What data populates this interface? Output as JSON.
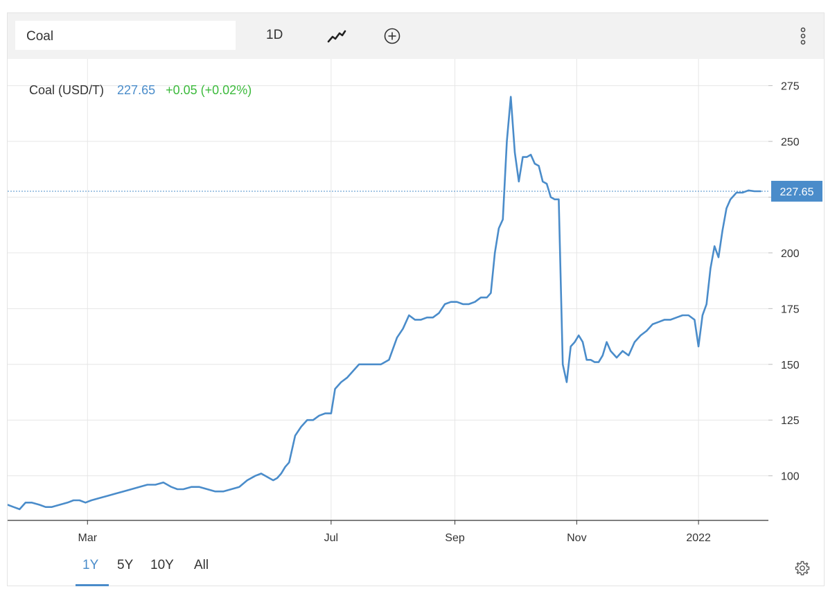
{
  "toolbar": {
    "symbol": "Coal",
    "period": "1D",
    "icons": {
      "chart_type": "line-chart-icon",
      "add": "plus-circle-icon",
      "more": "vertical-dots-icon",
      "settings": "gear-icon"
    }
  },
  "legend": {
    "name": "Coal (USD/T)",
    "price": "227.65",
    "change": "+0.05 (+0.02%)"
  },
  "ranges": [
    {
      "label": "1Y",
      "active": true
    },
    {
      "label": "5Y",
      "active": false
    },
    {
      "label": "10Y",
      "active": false
    },
    {
      "label": "All",
      "active": false
    }
  ],
  "colors": {
    "line": "#4a8cca",
    "up": "#3cba3c",
    "grid": "#e6e6e6",
    "price_tag": "#4a8cca"
  },
  "chart_data": {
    "type": "line",
    "title": "",
    "xlabel": "",
    "ylabel": "",
    "ylim": [
      80,
      287
    ],
    "y_axis_side": "right",
    "y_ticks": [
      100,
      125,
      150,
      175,
      200,
      225,
      250,
      275
    ],
    "y_tick_labels": [
      "100",
      "125",
      "150",
      "175",
      "200",
      "",
      "250",
      "275"
    ],
    "x_ticks": [
      {
        "date": "2021-03-01",
        "label": "Mar"
      },
      {
        "date": "2021-07-01",
        "label": "Jul"
      },
      {
        "date": "2021-09-01",
        "label": "Sep"
      },
      {
        "date": "2021-11-01",
        "label": "Nov"
      },
      {
        "date": "2022-01-01",
        "label": "2022"
      }
    ],
    "x_range": [
      "2021-01-20",
      "2022-02-05"
    ],
    "last_value": 227.65,
    "last_value_label": "227.65",
    "grid": true,
    "series": [
      {
        "name": "Coal (USD/T)",
        "x": [
          "2021-01-20",
          "2021-01-23",
          "2021-01-26",
          "2021-01-29",
          "2021-02-01",
          "2021-02-05",
          "2021-02-08",
          "2021-02-11",
          "2021-02-15",
          "2021-02-19",
          "2021-02-22",
          "2021-02-25",
          "2021-02-28",
          "2021-03-03",
          "2021-03-07",
          "2021-03-11",
          "2021-03-15",
          "2021-03-19",
          "2021-03-23",
          "2021-03-27",
          "2021-03-31",
          "2021-04-04",
          "2021-04-08",
          "2021-04-12",
          "2021-04-15",
          "2021-04-18",
          "2021-04-22",
          "2021-04-26",
          "2021-04-30",
          "2021-05-04",
          "2021-05-08",
          "2021-05-12",
          "2021-05-16",
          "2021-05-20",
          "2021-05-24",
          "2021-05-27",
          "2021-05-31",
          "2021-06-02",
          "2021-06-04",
          "2021-06-06",
          "2021-06-08",
          "2021-06-10",
          "2021-06-13",
          "2021-06-16",
          "2021-06-19",
          "2021-06-22",
          "2021-06-25",
          "2021-06-28",
          "2021-07-01",
          "2021-07-03",
          "2021-07-06",
          "2021-07-09",
          "2021-07-12",
          "2021-07-15",
          "2021-07-18",
          "2021-07-22",
          "2021-07-26",
          "2021-07-30",
          "2021-08-03",
          "2021-08-06",
          "2021-08-09",
          "2021-08-12",
          "2021-08-15",
          "2021-08-18",
          "2021-08-21",
          "2021-08-24",
          "2021-08-27",
          "2021-08-30",
          "2021-09-02",
          "2021-09-05",
          "2021-09-08",
          "2021-09-11",
          "2021-09-14",
          "2021-09-17",
          "2021-09-19",
          "2021-09-21",
          "2021-09-23",
          "2021-09-25",
          "2021-09-27",
          "2021-09-29",
          "2021-10-01",
          "2021-10-03",
          "2021-10-05",
          "2021-10-07",
          "2021-10-09",
          "2021-10-11",
          "2021-10-13",
          "2021-10-15",
          "2021-10-17",
          "2021-10-19",
          "2021-10-21",
          "2021-10-23",
          "2021-10-25",
          "2021-10-27",
          "2021-10-29",
          "2021-10-31",
          "2021-11-02",
          "2021-11-04",
          "2021-11-06",
          "2021-11-08",
          "2021-11-10",
          "2021-11-12",
          "2021-11-14",
          "2021-11-16",
          "2021-11-18",
          "2021-11-21",
          "2021-11-24",
          "2021-11-27",
          "2021-11-30",
          "2021-12-03",
          "2021-12-06",
          "2021-12-09",
          "2021-12-12",
          "2021-12-15",
          "2021-12-18",
          "2021-12-21",
          "2021-12-24",
          "2021-12-27",
          "2021-12-30",
          "2022-01-01",
          "2022-01-03",
          "2022-01-05",
          "2022-01-07",
          "2022-01-09",
          "2022-01-11",
          "2022-01-13",
          "2022-01-15",
          "2022-01-17",
          "2022-01-20",
          "2022-01-23",
          "2022-01-26",
          "2022-01-29",
          "2022-02-01"
        ],
        "y": [
          87,
          86,
          85,
          88,
          88,
          87,
          86,
          86,
          87,
          88,
          89,
          89,
          88,
          89,
          90,
          91,
          92,
          93,
          94,
          95,
          96,
          96,
          97,
          95,
          94,
          94,
          95,
          95,
          94,
          93,
          93,
          94,
          95,
          98,
          100,
          101,
          99,
          98,
          99,
          101,
          104,
          106,
          118,
          122,
          125,
          125,
          127,
          128,
          128,
          139,
          142,
          144,
          147,
          150,
          150,
          150,
          150,
          152,
          162,
          166,
          172,
          170,
          170,
          171,
          171,
          173,
          177,
          178,
          178,
          177,
          177,
          178,
          180,
          180,
          182,
          200,
          211,
          215,
          250,
          270,
          245,
          232,
          243,
          243,
          244,
          240,
          239,
          232,
          231,
          225,
          224,
          224,
          150,
          142,
          158,
          160,
          163,
          160,
          152,
          152,
          151,
          151,
          154,
          160,
          156,
          153,
          156,
          154,
          160,
          163,
          165,
          168,
          169,
          170,
          170,
          171,
          172,
          172,
          170,
          158,
          172,
          177,
          193,
          203,
          198,
          210,
          220,
          224,
          227,
          227,
          228,
          227.65,
          227.65
        ]
      }
    ]
  }
}
